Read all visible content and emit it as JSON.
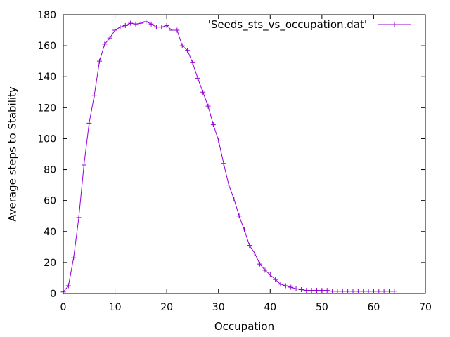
{
  "chart_data": {
    "type": "line",
    "xlabel": "Occupation",
    "ylabel": "Average steps to Stability",
    "xlim": [
      0,
      70
    ],
    "ylim": [
      0,
      180
    ],
    "xticks": [
      0,
      10,
      20,
      30,
      40,
      50,
      60,
      70
    ],
    "yticks": [
      0,
      20,
      40,
      60,
      80,
      100,
      120,
      140,
      160,
      180
    ],
    "grid": false,
    "legend_position": "top-right",
    "series": [
      {
        "name": "'Seeds_sts_vs_occupation.dat'",
        "color": "#9400d3",
        "marker": "plus",
        "x": [
          0,
          1,
          2,
          3,
          4,
          5,
          6,
          7,
          8,
          9,
          10,
          11,
          12,
          13,
          14,
          15,
          16,
          17,
          18,
          19,
          20,
          21,
          22,
          23,
          24,
          25,
          26,
          27,
          28,
          29,
          30,
          31,
          32,
          33,
          34,
          35,
          36,
          37,
          38,
          39,
          40,
          41,
          42,
          43,
          44,
          45,
          46,
          47,
          48,
          49,
          50,
          51,
          52,
          53,
          54,
          55,
          56,
          57,
          58,
          59,
          60,
          61,
          62,
          63,
          64
        ],
        "y": [
          1,
          5,
          23,
          49,
          83,
          110,
          128,
          150,
          161,
          165,
          170,
          172,
          173,
          174.5,
          174,
          174.5,
          175.5,
          174,
          172,
          172,
          173,
          170,
          170,
          160,
          157,
          149,
          139,
          130,
          121,
          109,
          99,
          84,
          70,
          61,
          50,
          41,
          31,
          26,
          19,
          15,
          12,
          9,
          6,
          5,
          4,
          3,
          2.5,
          2,
          2,
          2,
          2,
          2,
          1.5,
          1.5,
          1.5,
          1.5,
          1.5,
          1.5,
          1.5,
          1.5,
          1.5,
          1.5,
          1.5,
          1.5,
          1.5
        ]
      }
    ]
  }
}
